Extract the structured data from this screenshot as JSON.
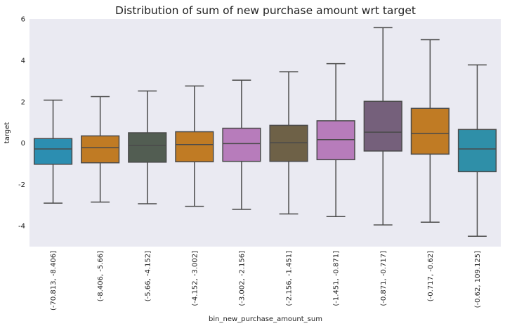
{
  "chart_data": {
    "type": "box",
    "title": "Distribution of sum of new purchase amount wrt target",
    "xlabel": "bin_new_purchase_amount_sum",
    "ylabel": "target",
    "ylim": [
      -5,
      6
    ],
    "yticks": [
      -4,
      -2,
      0,
      2,
      4,
      6
    ],
    "grid": false,
    "categories": [
      "(-70.813, -8.406]",
      "(-8.406, -5.66]",
      "(-5.66, -4.152]",
      "(-4.152, -3.002]",
      "(-3.002, -2.156]",
      "(-2.156, -1.451]",
      "(-1.451, -0.871]",
      "(-0.871, -0.717]",
      "(-0.717, -0.62]",
      "(-0.62, 109.125]"
    ],
    "boxes": [
      {
        "whisker_low": -2.9,
        "q1": -1.02,
        "median": -0.28,
        "q3": 0.22,
        "whisker_high": 2.08,
        "color": "#2c8eb1"
      },
      {
        "whisker_low": -2.85,
        "q1": -0.95,
        "median": -0.22,
        "q3": 0.35,
        "whisker_high": 2.25,
        "color": "#c07b24"
      },
      {
        "whisker_low": -2.93,
        "q1": -0.92,
        "median": -0.12,
        "q3": 0.5,
        "whisker_high": 2.52,
        "color": "#525d52"
      },
      {
        "whisker_low": -3.05,
        "q1": -0.9,
        "median": -0.07,
        "q3": 0.55,
        "whisker_high": 2.76,
        "color": "#c07b24"
      },
      {
        "whisker_low": -3.2,
        "q1": -0.88,
        "median": -0.02,
        "q3": 0.72,
        "whisker_high": 3.04,
        "color": "#b77cbb"
      },
      {
        "whisker_low": -3.42,
        "q1": -0.88,
        "median": 0.02,
        "q3": 0.86,
        "whisker_high": 3.45,
        "color": "#6e6147"
      },
      {
        "whisker_low": -3.55,
        "q1": -0.8,
        "median": 0.17,
        "q3": 1.08,
        "whisker_high": 3.84,
        "color": "#b77cbb"
      },
      {
        "whisker_low": -3.95,
        "q1": -0.38,
        "median": 0.53,
        "q3": 2.02,
        "whisker_high": 5.58,
        "color": "#75607b"
      },
      {
        "whisker_low": -3.82,
        "q1": -0.53,
        "median": 0.47,
        "q3": 1.68,
        "whisker_high": 5.0,
        "color": "#c07b24"
      },
      {
        "whisker_low": -4.5,
        "q1": -1.38,
        "median": -0.28,
        "q3": 0.66,
        "whisker_high": 3.78,
        "color": "#2f8fa8"
      }
    ],
    "colors": {
      "plot_background": "#eaeaf2",
      "line": "#4a4a4a"
    }
  }
}
